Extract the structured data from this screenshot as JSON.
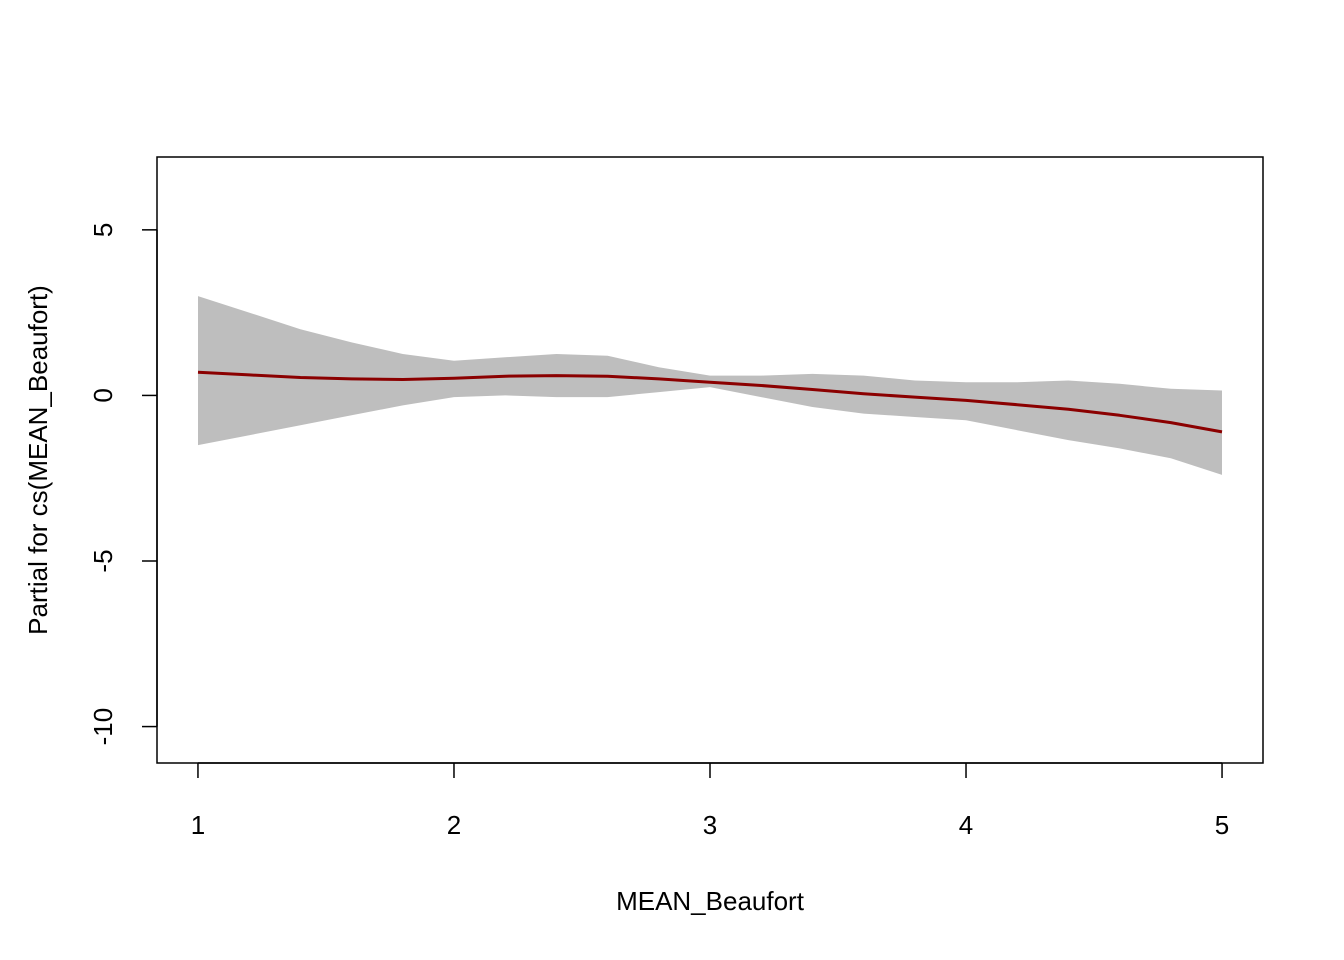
{
  "chart_data": {
    "type": "line",
    "title": "",
    "xlabel": "MEAN_Beaufort",
    "ylabel": "Partial for cs(MEAN_Beaufort)",
    "xlim": [
      0.84,
      5.16
    ],
    "ylim": [
      -11.1,
      7.2
    ],
    "xticks": [
      1,
      2,
      3,
      4,
      5
    ],
    "yticks": [
      -10,
      -5,
      0,
      5
    ],
    "xtick_labels": [
      "1",
      "2",
      "3",
      "4",
      "5"
    ],
    "ytick_labels": [
      "-10",
      "-5",
      "0",
      "5"
    ],
    "grid": false,
    "legend": "none",
    "series": [
      {
        "kind": "fit",
        "x": [
          1.0,
          1.2,
          1.4,
          1.6,
          1.8,
          2.0,
          2.2,
          2.4,
          2.6,
          2.8,
          3.0,
          3.2,
          3.4,
          3.6,
          3.8,
          4.0,
          4.2,
          4.4,
          4.6,
          4.8,
          5.0
        ],
        "y": [
          0.7,
          0.62,
          0.54,
          0.5,
          0.48,
          0.52,
          0.58,
          0.6,
          0.58,
          0.5,
          0.4,
          0.3,
          0.18,
          0.05,
          -0.05,
          -0.15,
          -0.28,
          -0.42,
          -0.6,
          -0.82,
          -1.1
        ]
      },
      {
        "kind": "confidence-band",
        "x": [
          1.0,
          1.2,
          1.4,
          1.6,
          1.8,
          2.0,
          2.2,
          2.4,
          2.6,
          2.8,
          3.0,
          3.2,
          3.4,
          3.6,
          3.8,
          4.0,
          4.2,
          4.4,
          4.6,
          4.8,
          5.0
        ],
        "upper": [
          3.0,
          2.5,
          2.0,
          1.6,
          1.25,
          1.05,
          1.15,
          1.25,
          1.2,
          0.85,
          0.6,
          0.6,
          0.65,
          0.6,
          0.45,
          0.4,
          0.4,
          0.45,
          0.35,
          0.2,
          0.15
        ],
        "lower": [
          -1.5,
          -1.2,
          -0.9,
          -0.6,
          -0.3,
          -0.05,
          0.0,
          -0.05,
          -0.05,
          0.1,
          0.25,
          -0.05,
          -0.35,
          -0.55,
          -0.65,
          -0.75,
          -1.05,
          -1.35,
          -1.6,
          -1.9,
          -2.4
        ]
      }
    ],
    "colors": {
      "line": "#8B0000",
      "band": "#BEBEBE",
      "axis": "#000000"
    }
  }
}
